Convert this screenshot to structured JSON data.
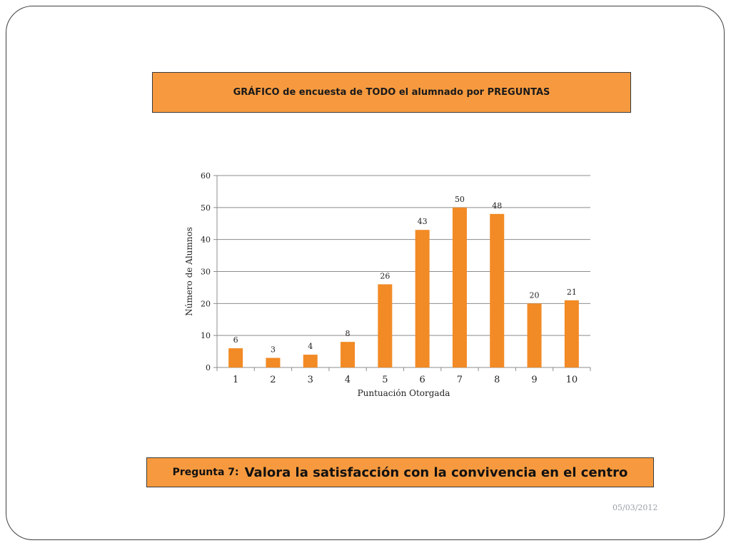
{
  "header": {
    "title": "GRÁFICO de encuesta de TODO  el alumnado por PREGUNTAS"
  },
  "question": {
    "label": "Pregunta 7:",
    "text": "Valora la satisfacción con la convivencia en el centro"
  },
  "footer": {
    "date": "05/03/2012"
  },
  "colors": {
    "bar": "#f28a25",
    "title_fill": "#f79a3f",
    "grid": "#8c8c8c"
  },
  "chart_data": {
    "type": "bar",
    "categories": [
      "1",
      "2",
      "3",
      "4",
      "5",
      "6",
      "7",
      "8",
      "9",
      "10"
    ],
    "values": [
      6,
      3,
      4,
      8,
      26,
      43,
      50,
      48,
      20,
      21
    ],
    "title": "",
    "xlabel": "Puntuación Otorgada",
    "ylabel": "Número de Alumnos",
    "ylim": [
      0,
      60
    ],
    "yticks": [
      0,
      10,
      20,
      30,
      40,
      50,
      60
    ],
    "grid": true,
    "legend": "none",
    "data_labels": true
  }
}
